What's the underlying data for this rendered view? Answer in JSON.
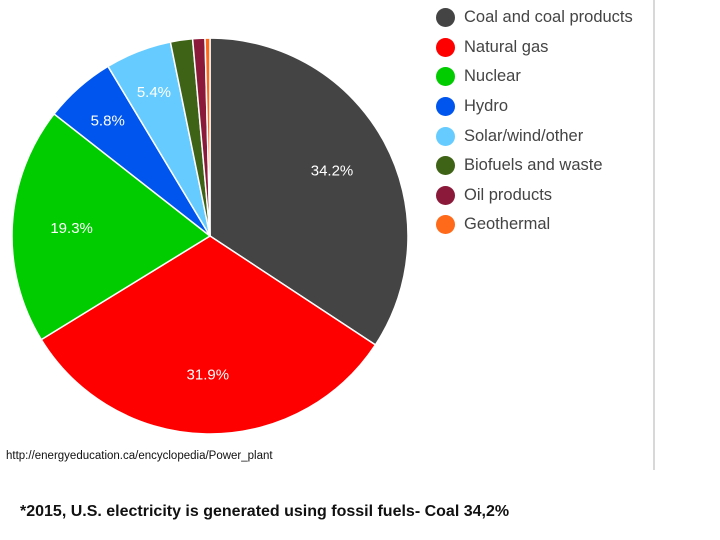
{
  "chart_data": {
    "type": "pie",
    "title": "",
    "categories": [
      "Coal and coal products",
      "Natural gas",
      "Nuclear",
      "Hydro",
      "Solar/wind/other",
      "Biofuels and waste",
      "Oil products",
      "Geothermal"
    ],
    "values": [
      34.2,
      31.9,
      19.3,
      5.8,
      5.4,
      1.8,
      1.0,
      0.4
    ],
    "labels": [
      "34.2%",
      "31.9%",
      "19.3%",
      "5.8%",
      "5.4%",
      "",
      "",
      ""
    ],
    "colors": [
      "#444444",
      "#ff0000",
      "#00cc00",
      "#0055ee",
      "#66ccff",
      "#3f6316",
      "#8b1a3a",
      "#ff6a1a"
    ],
    "legend_position": "right",
    "start_angle": "top, clockwise"
  },
  "source": "http://energyeducation.ca/encyclopedia/Power_plant",
  "caption": "*2015, U.S. electricity is generated using fossil fuels- Coal 34,2%"
}
